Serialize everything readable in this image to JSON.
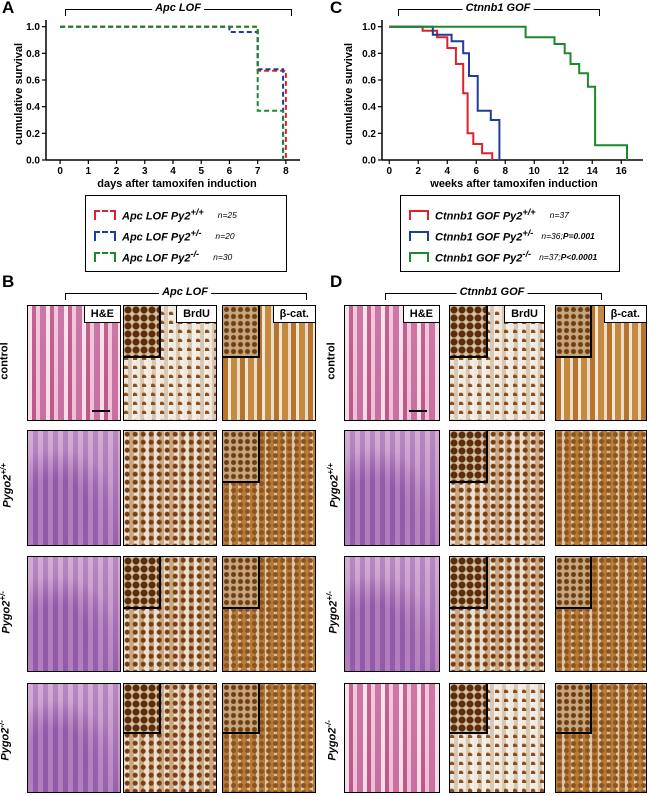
{
  "panels": {
    "A": {
      "letter": "A",
      "bracket_title": "Apc LOF",
      "ylabel": "cumulative survival",
      "xlabel": "days after tamoxifen induction",
      "legend": [
        {
          "label": "Apc LOF Py2",
          "sup": "+/+",
          "n": "n=25",
          "color": "#e0202a"
        },
        {
          "label": "Apc LOF Py2",
          "sup": "+/-",
          "n": "n=20",
          "color": "#1e3c9c"
        },
        {
          "label": "Apc LOF Py2",
          "sup": "-/-",
          "n": "n=30",
          "color": "#1a8a2a"
        }
      ]
    },
    "C": {
      "letter": "C",
      "bracket_title": "Ctnnb1 GOF",
      "ylabel": "cumulative survival",
      "xlabel": "weeks after tamoxifen induction",
      "legend": [
        {
          "label": "Ctnnb1 GOF Py2",
          "sup": "+/+",
          "n": "n=37",
          "color": "#e0202a"
        },
        {
          "label": "Ctnnb1 GOF Py2",
          "sup": "+/-",
          "n": "n=36;",
          "p": "P=0.001",
          "color": "#1e3c9c"
        },
        {
          "label": "Ctnnb1 GOF Py2",
          "sup": "-/-",
          "n": "n=37;",
          "p": "P<0.0001",
          "color": "#1a8a2a"
        }
      ]
    },
    "B": {
      "letter": "B",
      "bracket_title": "Apc LOF",
      "columns": [
        "H&E",
        "BrdU",
        "β-cat."
      ],
      "rows": [
        {
          "label": "control",
          "sup": ""
        },
        {
          "label": "Pygo2",
          "sup": "+/+"
        },
        {
          "label": "Pygo2",
          "sup": "+/-"
        },
        {
          "label": "Pygo2",
          "sup": "-/-"
        }
      ]
    },
    "D": {
      "letter": "D",
      "bracket_title": "Ctnnb1 GOF",
      "columns": [
        "H&E",
        "BrdU",
        "β-cat."
      ],
      "rows": [
        {
          "label": "control",
          "sup": ""
        },
        {
          "label": "Pygo2",
          "sup": "+/+"
        },
        {
          "label": "Pygo2",
          "sup": "+/-"
        },
        {
          "label": "Pygo2",
          "sup": "-/-"
        }
      ]
    }
  },
  "chart_data": [
    {
      "type": "line",
      "step": true,
      "xlabel": "days after tamoxifen induction",
      "ylabel": "cumulative survival",
      "xlim": [
        -0.5,
        8.5
      ],
      "ylim": [
        0,
        1.05
      ],
      "xticks": [
        0,
        1,
        2,
        3,
        4,
        5,
        6,
        7,
        8
      ],
      "yticks": [
        0.0,
        0.2,
        0.4,
        0.6,
        0.8,
        1.0
      ],
      "series": [
        {
          "name": "Apc LOF Py2+/+",
          "color": "#e0202a",
          "dashed": true,
          "points": [
            [
              0,
              1.0
            ],
            [
              7,
              1.0
            ],
            [
              7,
              0.67
            ],
            [
              8,
              0.67
            ],
            [
              8,
              0.0
            ]
          ]
        },
        {
          "name": "Apc LOF Py2+/-",
          "color": "#1e3c9c",
          "dashed": true,
          "points": [
            [
              0,
              1.0
            ],
            [
              6,
              1.0
            ],
            [
              6,
              0.96
            ],
            [
              7,
              0.96
            ],
            [
              7,
              0.68
            ],
            [
              7.9,
              0.68
            ],
            [
              7.9,
              0.0
            ]
          ]
        },
        {
          "name": "Apc LOF Py2-/-",
          "color": "#1a8a2a",
          "dashed": true,
          "points": [
            [
              0,
              1.0
            ],
            [
              7,
              1.0
            ],
            [
              7,
              0.37
            ],
            [
              7.9,
              0.37
            ],
            [
              7.9,
              0.0
            ]
          ]
        }
      ]
    },
    {
      "type": "line",
      "step": true,
      "xlabel": "weeks after tamoxifen induction",
      "ylabel": "cumulative survival",
      "xlim": [
        -0.5,
        17.5
      ],
      "ylim": [
        0,
        1.05
      ],
      "xticks": [
        0,
        2,
        4,
        6,
        8,
        10,
        12,
        14,
        16
      ],
      "yticks": [
        0.0,
        0.2,
        0.4,
        0.6,
        0.8,
        1.0
      ],
      "series": [
        {
          "name": "Ctnnb1 GOF Py2+/+",
          "color": "#e0202a",
          "points": [
            [
              0,
              1.0
            ],
            [
              2.3,
              1.0
            ],
            [
              2.3,
              0.97
            ],
            [
              3.3,
              0.97
            ],
            [
              3.3,
              0.92
            ],
            [
              4.0,
              0.92
            ],
            [
              4.0,
              0.84
            ],
            [
              4.6,
              0.84
            ],
            [
              4.6,
              0.72
            ],
            [
              5.1,
              0.72
            ],
            [
              5.1,
              0.5
            ],
            [
              5.4,
              0.5
            ],
            [
              5.4,
              0.2
            ],
            [
              5.8,
              0.2
            ],
            [
              5.8,
              0.12
            ],
            [
              6.4,
              0.12
            ],
            [
              6.4,
              0.05
            ],
            [
              7.1,
              0.05
            ],
            [
              7.1,
              0.0
            ]
          ]
        },
        {
          "name": "Ctnnb1 GOF Py2+/-",
          "color": "#1e3c9c",
          "points": [
            [
              0,
              1.0
            ],
            [
              3.0,
              1.0
            ],
            [
              3.0,
              0.94
            ],
            [
              4.3,
              0.94
            ],
            [
              4.3,
              0.89
            ],
            [
              5.1,
              0.89
            ],
            [
              5.1,
              0.8
            ],
            [
              5.5,
              0.8
            ],
            [
              5.5,
              0.63
            ],
            [
              6.1,
              0.63
            ],
            [
              6.1,
              0.37
            ],
            [
              7.0,
              0.37
            ],
            [
              7.0,
              0.3
            ],
            [
              7.6,
              0.3
            ],
            [
              7.6,
              0.0
            ]
          ]
        },
        {
          "name": "Ctnnb1 GOF Py2-/-",
          "color": "#1a8a2a",
          "points": [
            [
              0,
              1.0
            ],
            [
              9.4,
              1.0
            ],
            [
              9.4,
              0.92
            ],
            [
              11.4,
              0.92
            ],
            [
              11.4,
              0.87
            ],
            [
              12.1,
              0.87
            ],
            [
              12.1,
              0.8
            ],
            [
              12.5,
              0.8
            ],
            [
              12.5,
              0.72
            ],
            [
              13.1,
              0.72
            ],
            [
              13.1,
              0.65
            ],
            [
              13.7,
              0.65
            ],
            [
              13.7,
              0.55
            ],
            [
              14.2,
              0.55
            ],
            [
              14.2,
              0.11
            ],
            [
              16.4,
              0.11
            ],
            [
              16.4,
              0.0
            ]
          ]
        }
      ]
    }
  ]
}
